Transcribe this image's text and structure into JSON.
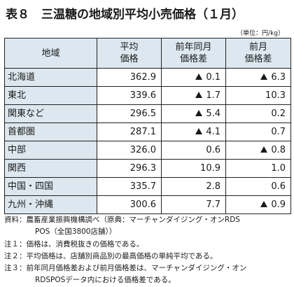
{
  "title": "表８　三温糖の地域別平均小売価格（１月）",
  "unit": "（単位：円/kg）",
  "table": {
    "headers": {
      "region": "地域",
      "avg_price": [
        "平均",
        "価格"
      ],
      "yoy_diff": [
        "前年同月",
        "価格差"
      ],
      "mom_diff": [
        "前月",
        "価格差"
      ]
    },
    "rows": [
      {
        "region": "北海道",
        "avg_price": "362.9",
        "yoy_diff": "0.1",
        "yoy_negative": true,
        "mom_diff": "6.3",
        "mom_negative": true
      },
      {
        "region": "東北",
        "avg_price": "339.6",
        "yoy_diff": "1.7",
        "yoy_negative": true,
        "mom_diff": "10.3",
        "mom_negative": false
      },
      {
        "region": "関東など",
        "avg_price": "296.5",
        "yoy_diff": "5.4",
        "yoy_negative": true,
        "mom_diff": "0.2",
        "mom_negative": false
      },
      {
        "region": "首都圏",
        "avg_price": "287.1",
        "yoy_diff": "4.1",
        "yoy_negative": true,
        "mom_diff": "0.7",
        "mom_negative": false
      },
      {
        "region": "中部",
        "avg_price": "326.0",
        "yoy_diff": "0.6",
        "yoy_negative": false,
        "mom_diff": "0.8",
        "mom_negative": true
      },
      {
        "region": "関西",
        "avg_price": "296.3",
        "yoy_diff": "10.9",
        "yoy_negative": false,
        "mom_diff": "1.0",
        "mom_negative": false
      },
      {
        "region": "中国・四国",
        "avg_price": "335.7",
        "yoy_diff": "2.8",
        "yoy_negative": false,
        "mom_diff": "0.6",
        "mom_negative": false
      },
      {
        "region": "九州・沖縄",
        "avg_price": "300.6",
        "yoy_diff": "7.7",
        "yoy_negative": false,
        "mom_diff": "0.9",
        "mom_negative": true
      }
    ]
  },
  "notes": {
    "source_label": "資料：",
    "source_text": "農畜産業振興機構調べ（原典：マーチャンダイジング・オンRDS",
    "source_text_cont": "POS（全国3800店舗））",
    "note1_label": "注１：",
    "note1_text": "価格は、消費税抜きの価格である。",
    "note2_label": "注２：",
    "note2_text": "平均価格は、店舗別商品別の最高価格の単純平均である。",
    "note3_label": "注３：",
    "note3_text": "前年同月価格差および前月価格差は、マーチャンダイジング・オン",
    "note3_text_cont": "RDSPOSデータ内における価格差である。"
  }
}
